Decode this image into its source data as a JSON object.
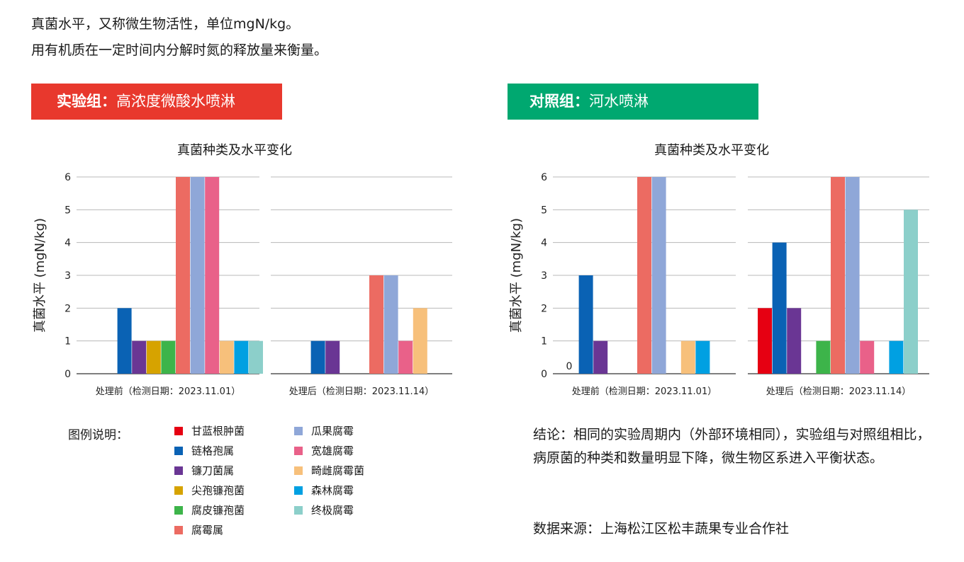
{
  "intro": {
    "line1": "真菌水平，又称微生物活性，单位mgN/kg。",
    "line2": "用有机质在一定时间内分解时氮的释放量来衡量。"
  },
  "groups": [
    {
      "label_bold": "实验组：",
      "label_rest": "高浓度微酸水喷淋",
      "color": "#e8382d"
    },
    {
      "label_bold": "对照组：",
      "label_rest": "河水喷淋",
      "color": "#00a870"
    }
  ],
  "legend": {
    "title": "图例说明：",
    "items": [
      {
        "name": "甘蓝根肿菌",
        "color": "#e60012"
      },
      {
        "name": "链格孢属",
        "color": "#0a62b4"
      },
      {
        "name": "镰刀菌属",
        "color": "#6a3694"
      },
      {
        "name": "尖孢镰孢菌",
        "color": "#d6a300"
      },
      {
        "name": "腐皮镰孢菌",
        "color": "#3db44a"
      },
      {
        "name": "腐霉属",
        "color": "#ec6b62"
      },
      {
        "name": "瓜果腐霉",
        "color": "#8fa7d8"
      },
      {
        "name": "宽雄腐霉",
        "color": "#e96189"
      },
      {
        "name": "畸雌腐霉菌",
        "color": "#f7c07b"
      },
      {
        "name": "森林腐霉",
        "color": "#00a0e2"
      },
      {
        "name": "终极腐霉",
        "color": "#8ccfca"
      }
    ]
  },
  "conclusion": "结论：相同的实验周期内（外部环境相同），实验组与对照组相比，病原菌的种类和数量明显下降，微生物区系进入平衡状态。",
  "source": "数据来源：上海松江区松丰蔬果专业合作社",
  "chart_data": [
    {
      "type": "bar",
      "title": "真菌种类及水平变化",
      "ylabel": "真菌水平 (mgN/kg)",
      "ylim": [
        0,
        6
      ],
      "yticks": [
        0,
        1,
        2,
        3,
        4,
        5,
        6
      ],
      "grid": true,
      "categories": [
        "处理前（检测日期：2023.11.01）",
        "处理后（检测日期：2023.11.14）"
      ],
      "series": [
        {
          "name": "甘蓝根肿菌",
          "values": [
            0,
            0
          ]
        },
        {
          "name": "链格孢属",
          "values": [
            2,
            1
          ]
        },
        {
          "name": "镰刀菌属",
          "values": [
            1,
            1
          ]
        },
        {
          "name": "尖孢镰孢菌",
          "values": [
            1,
            0
          ]
        },
        {
          "name": "腐皮镰孢菌",
          "values": [
            1,
            0
          ]
        },
        {
          "name": "腐霉属",
          "values": [
            6,
            3
          ]
        },
        {
          "name": "瓜果腐霉",
          "values": [
            6,
            3
          ]
        },
        {
          "name": "宽雄腐霉",
          "values": [
            6,
            1
          ]
        },
        {
          "name": "畸雌腐霉菌",
          "values": [
            1,
            2
          ]
        },
        {
          "name": "森林腐霉",
          "values": [
            1,
            0
          ]
        },
        {
          "name": "终极腐霉",
          "values": [
            1,
            0
          ]
        }
      ]
    },
    {
      "type": "bar",
      "title": "真菌种类及水平变化",
      "ylabel": "真菌水平 (mgN/kg)",
      "ylim": [
        0,
        6
      ],
      "yticks": [
        0,
        1,
        2,
        3,
        4,
        5,
        6
      ],
      "grid": true,
      "annotation": "0",
      "categories": [
        "处理前（检测日期：2023.11.01）",
        "处理后（检测日期：2023.11.14）"
      ],
      "series": [
        {
          "name": "甘蓝根肿菌",
          "values": [
            0,
            2
          ]
        },
        {
          "name": "链格孢属",
          "values": [
            3,
            4
          ]
        },
        {
          "name": "镰刀菌属",
          "values": [
            1,
            2
          ]
        },
        {
          "name": "尖孢镰孢菌",
          "values": [
            0,
            0
          ]
        },
        {
          "name": "腐皮镰孢菌",
          "values": [
            0,
            1
          ]
        },
        {
          "name": "腐霉属",
          "values": [
            6,
            6
          ]
        },
        {
          "name": "瓜果腐霉",
          "values": [
            6,
            6
          ]
        },
        {
          "name": "宽雄腐霉",
          "values": [
            0,
            1
          ]
        },
        {
          "name": "畸雌腐霉菌",
          "values": [
            1,
            0
          ]
        },
        {
          "name": "森林腐霉",
          "values": [
            1,
            1
          ]
        },
        {
          "name": "终极腐霉",
          "values": [
            0,
            5
          ]
        }
      ]
    }
  ]
}
